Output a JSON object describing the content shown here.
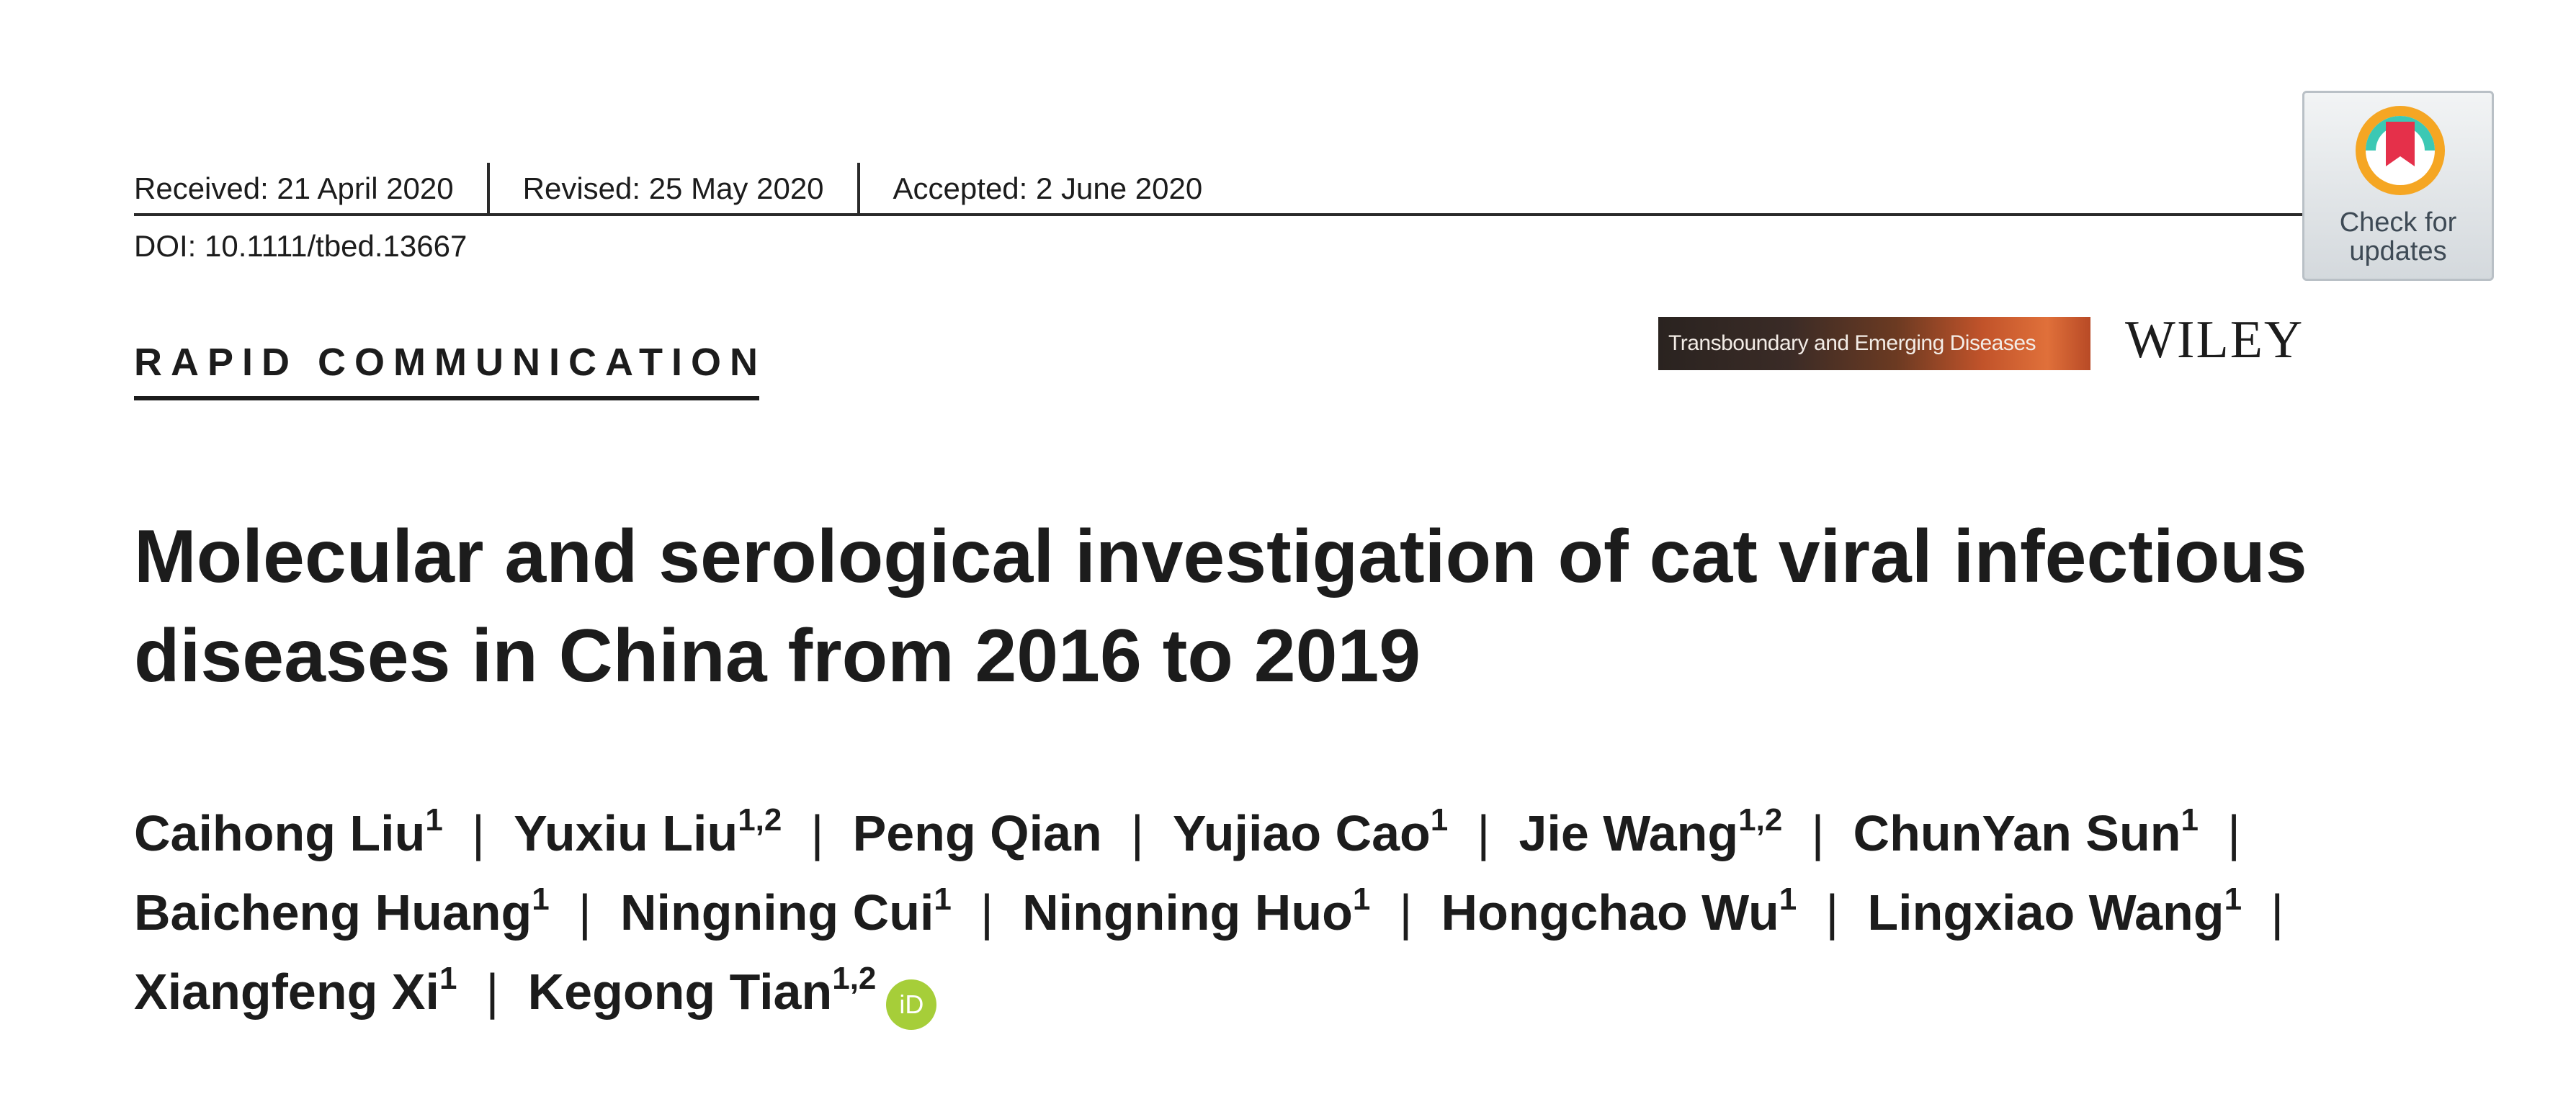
{
  "header": {
    "received": "Received: 21 April 2020",
    "revised": "Revised: 25 May 2020",
    "accepted": "Accepted: 2 June 2020",
    "doi": "DOI: 10.1111/tbed.13667"
  },
  "section_label": "RAPID COMMUNICATION",
  "journal_name": "Transboundary and Emerging Diseases",
  "publisher": "WILEY",
  "check_updates": {
    "line1": "Check for",
    "line2": "updates",
    "icon": "check-for-updates-bookmark-icon"
  },
  "title": "Molecular and serological investigation of cat viral infectious diseases in China from 2016 to 2019",
  "authors": [
    {
      "name": "Caihong Liu",
      "aff": "1"
    },
    {
      "name": "Yuxiu Liu",
      "aff": "1,2"
    },
    {
      "name": "Peng Qian",
      "aff": ""
    },
    {
      "name": "Yujiao Cao",
      "aff": "1"
    },
    {
      "name": "Jie Wang",
      "aff": "1,2"
    },
    {
      "name": "ChunYan Sun",
      "aff": "1"
    },
    {
      "name": "Baicheng Huang",
      "aff": "1"
    },
    {
      "name": "Ningning Cui",
      "aff": "1"
    },
    {
      "name": "Ningning Huo",
      "aff": "1"
    },
    {
      "name": "Hongchao Wu",
      "aff": "1"
    },
    {
      "name": "Lingxiao Wang",
      "aff": "1"
    },
    {
      "name": "Xiangfeng Xi",
      "aff": "1"
    },
    {
      "name": "Kegong Tian",
      "aff": "1,2"
    }
  ],
  "orcid_label": "iD",
  "author_separator": "|",
  "colors": {
    "orcid": "#a6ce39",
    "check_ring_outer": "#f5a623",
    "check_ring_inner": "#3cc8b4",
    "check_bookmark": "#e5304a"
  }
}
